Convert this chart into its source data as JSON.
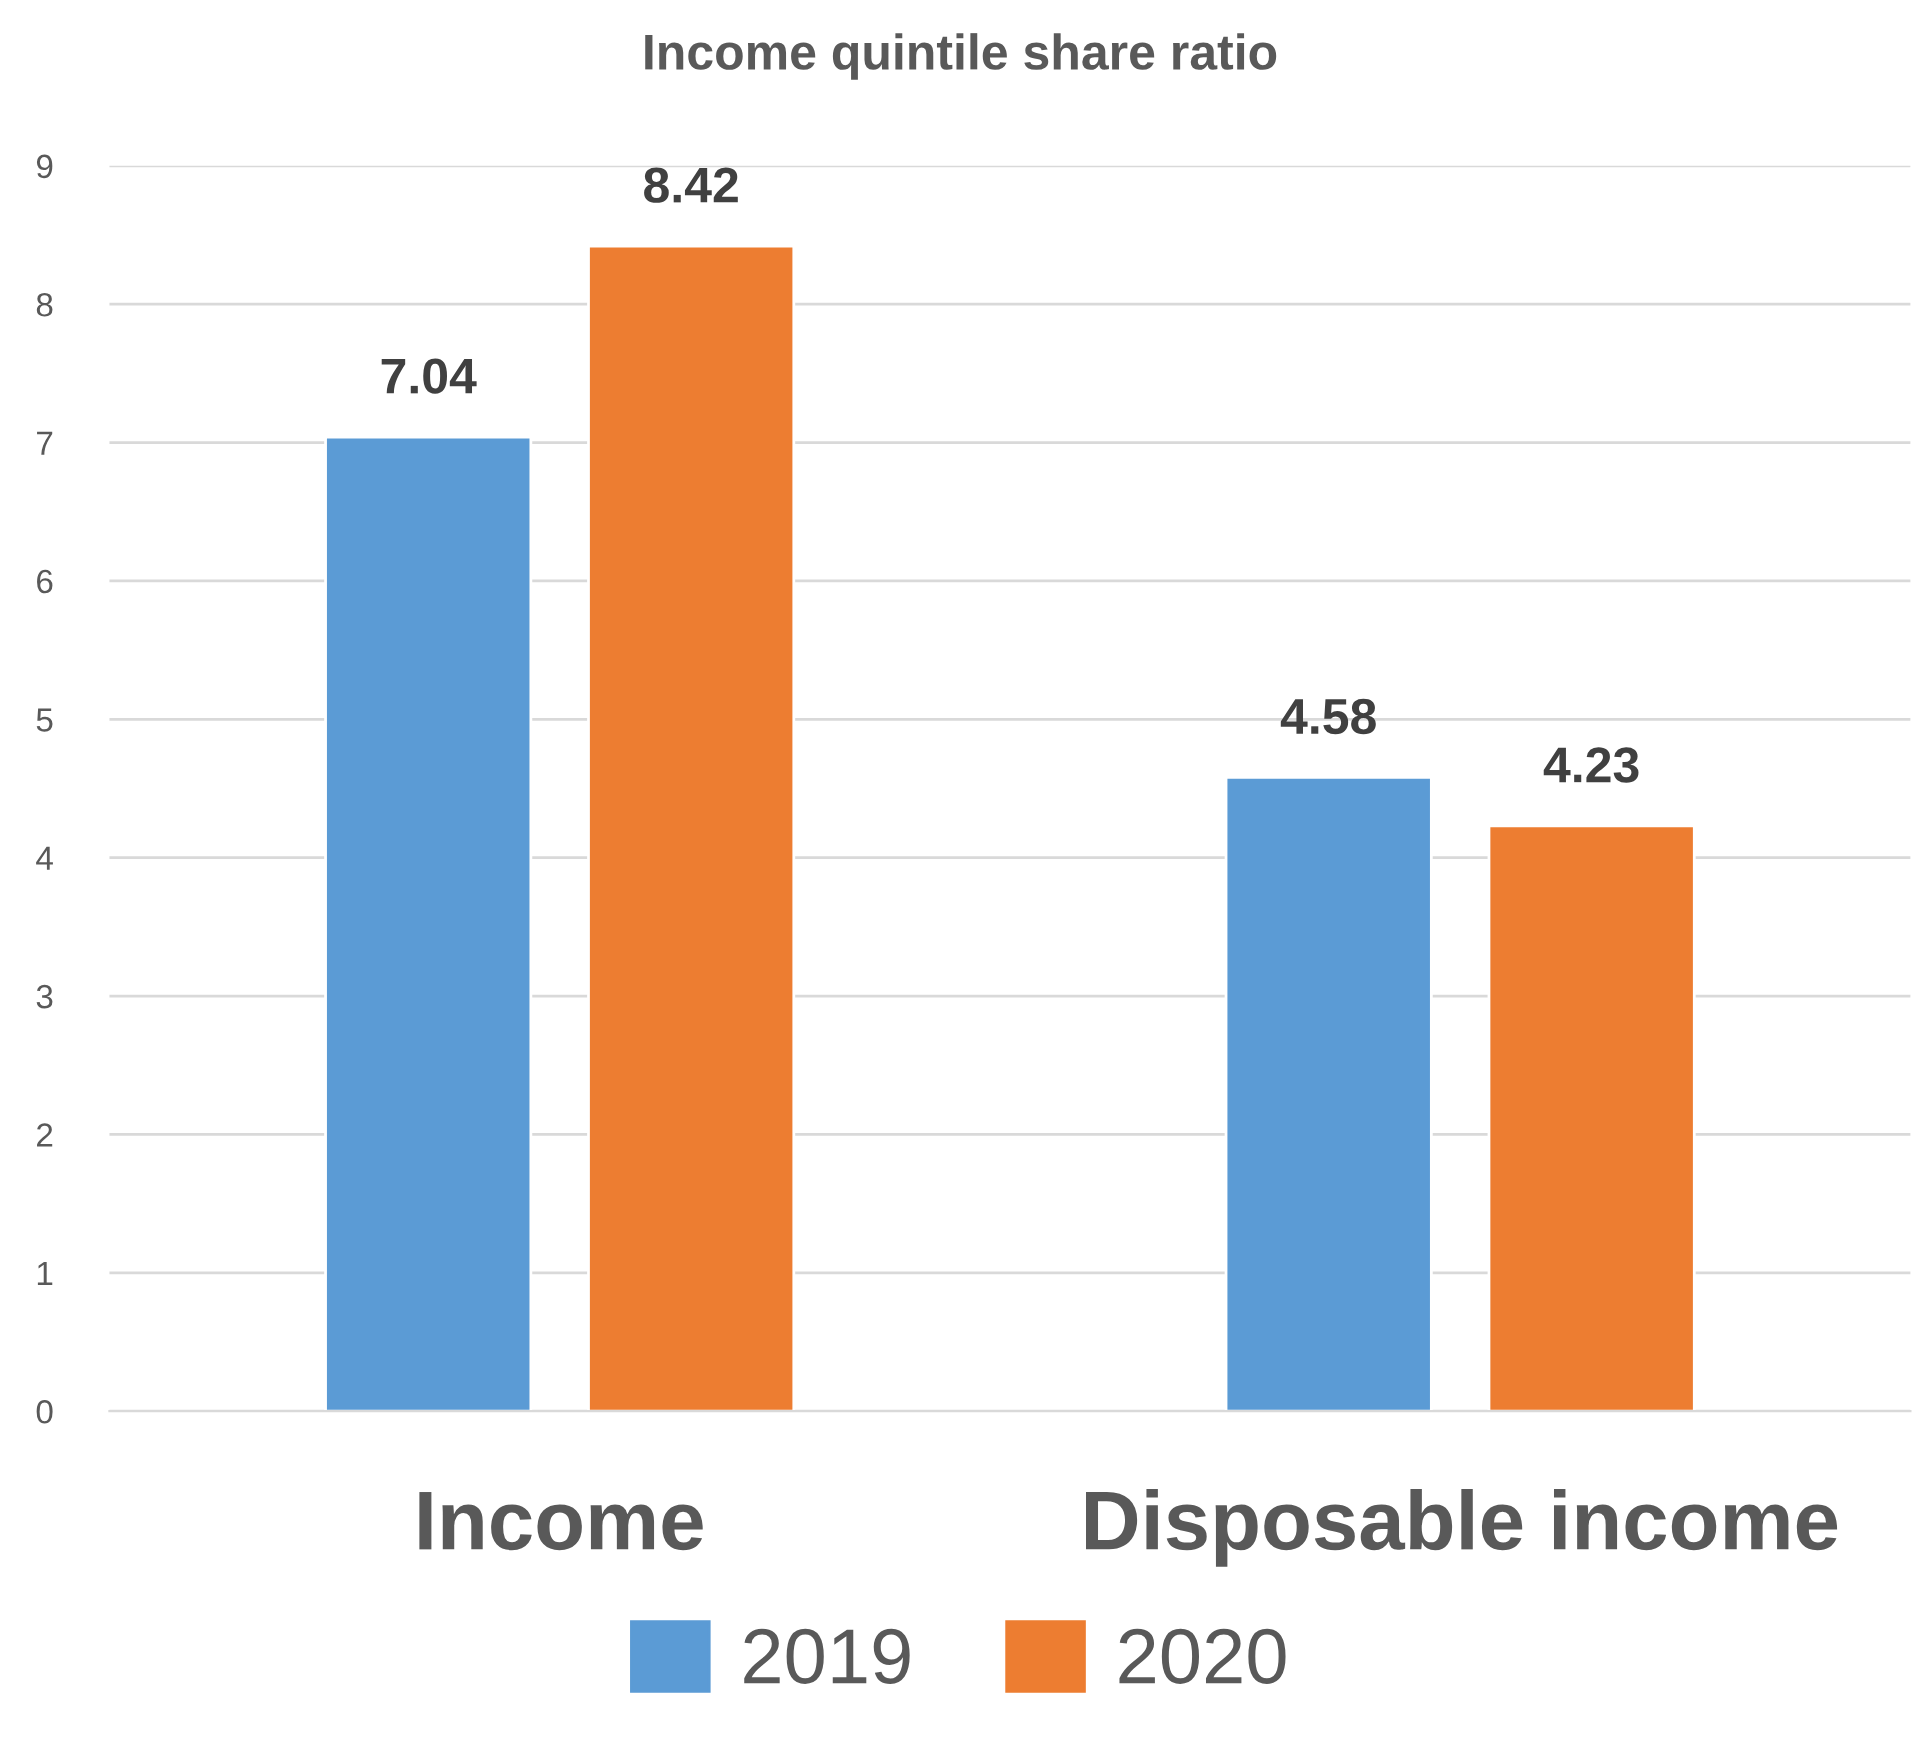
{
  "chart_data": {
    "type": "bar",
    "title": "Income quintile share ratio",
    "categories": [
      "Income",
      "Disposable income"
    ],
    "series": [
      {
        "name": "2019",
        "color": "#5b9bd5",
        "values": [
          7.04,
          4.58
        ]
      },
      {
        "name": "2020",
        "color": "#ed7d31",
        "values": [
          8.42,
          4.23
        ]
      }
    ],
    "ylim": [
      0,
      9
    ],
    "yticks": [
      0,
      1,
      2,
      3,
      4,
      5,
      6,
      7,
      8,
      9
    ],
    "grid": "y",
    "legend": "bottom",
    "data_labels": true
  }
}
